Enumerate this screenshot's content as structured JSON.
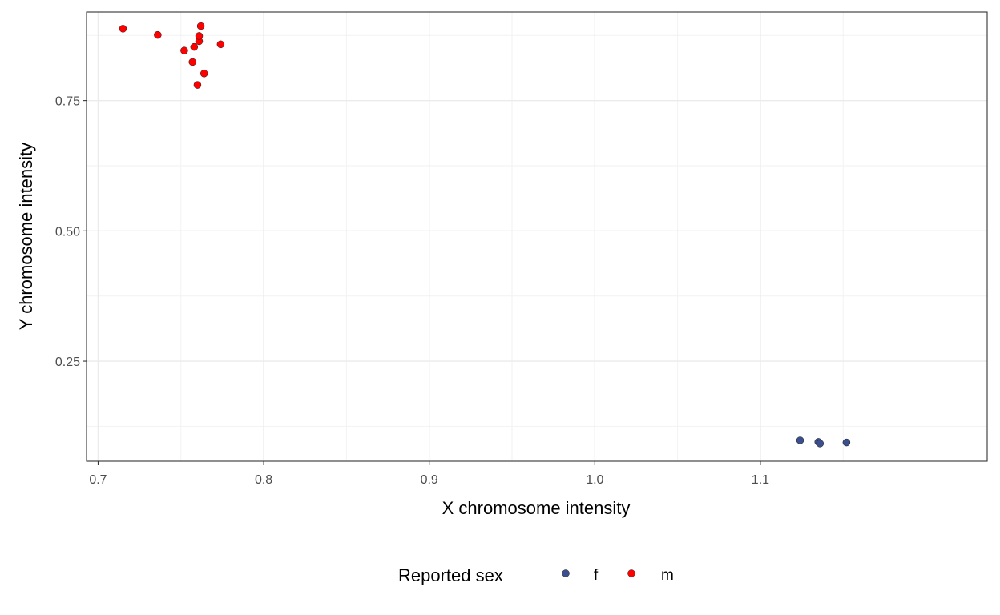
{
  "chart_data": {
    "type": "scatter",
    "title": "",
    "xlabel": "X chromosome intensity",
    "ylabel": "Y chromosome intensity",
    "xlim": [
      0.693,
      1.237
    ],
    "ylim": [
      0.058,
      0.92
    ],
    "x_ticks": [
      0.7,
      0.8,
      0.9,
      1.0,
      1.1
    ],
    "x_tick_labels": [
      "0.7",
      "0.8",
      "0.9",
      "1.0",
      "1.1"
    ],
    "y_ticks": [
      0.25,
      0.5,
      0.75
    ],
    "y_tick_labels": [
      "0.25",
      "0.50",
      "0.75"
    ],
    "grid": true,
    "legend": {
      "title": "Reported sex",
      "placement": "bottom",
      "entries": [
        "f",
        "m"
      ]
    },
    "series": [
      {
        "name": "f",
        "color": "#3b4f8f",
        "points": [
          {
            "x": 1.124,
            "y": 0.098
          },
          {
            "x": 1.135,
            "y": 0.095
          },
          {
            "x": 1.136,
            "y": 0.092
          },
          {
            "x": 1.152,
            "y": 0.094
          }
        ]
      },
      {
        "name": "m",
        "color": "#ff0000",
        "points": [
          {
            "x": 0.715,
            "y": 0.888
          },
          {
            "x": 0.736,
            "y": 0.876
          },
          {
            "x": 0.752,
            "y": 0.846
          },
          {
            "x": 0.757,
            "y": 0.824
          },
          {
            "x": 0.758,
            "y": 0.853
          },
          {
            "x": 0.76,
            "y": 0.78
          },
          {
            "x": 0.761,
            "y": 0.864
          },
          {
            "x": 0.761,
            "y": 0.874
          },
          {
            "x": 0.762,
            "y": 0.893
          },
          {
            "x": 0.764,
            "y": 0.802
          },
          {
            "x": 0.774,
            "y": 0.858
          }
        ]
      }
    ]
  }
}
